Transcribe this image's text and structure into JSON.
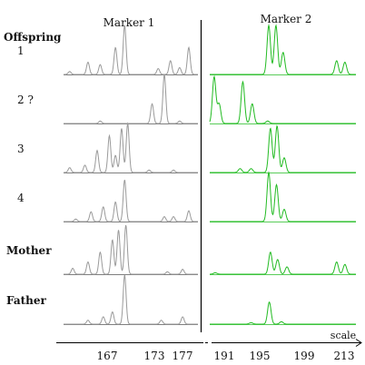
{
  "chart_data": {
    "type": "line",
    "title": "",
    "marker_headers": [
      "Marker 1",
      "Marker 2"
    ],
    "row_header": "Offspring",
    "x_axis": {
      "label": "scale",
      "ticks": [
        "167",
        "173",
        "177",
        "191",
        "195",
        "199",
        "213"
      ]
    },
    "colors": {
      "marker1": "#9a9a9a",
      "marker2": "#22bb22",
      "baseline": "#555555",
      "axis": "#000000"
    },
    "rows": [
      {
        "label": "1",
        "bold": false,
        "marker1": [
          {
            "x": 158,
            "h": 0.06
          },
          {
            "x": 161,
            "h": 0.25
          },
          {
            "x": 163,
            "h": 0.2
          },
          {
            "x": 165.5,
            "h": 0.55
          },
          {
            "x": 167,
            "h": 1.0
          },
          {
            "x": 172.5,
            "h": 0.12
          },
          {
            "x": 174.5,
            "h": 0.28
          },
          {
            "x": 176,
            "h": 0.14
          },
          {
            "x": 177.5,
            "h": 0.55
          }
        ],
        "marker2": [
          {
            "x": 198.2,
            "h": 1.0
          },
          {
            "x": 199.5,
            "h": 1.0
          },
          {
            "x": 200.8,
            "h": 0.45
          },
          {
            "x": 210.5,
            "h": 0.28
          },
          {
            "x": 212,
            "h": 0.25
          }
        ]
      },
      {
        "label": "2 ?",
        "bold": false,
        "marker1": [
          {
            "x": 163,
            "h": 0.05
          },
          {
            "x": 171.5,
            "h": 0.4
          },
          {
            "x": 173.5,
            "h": 1.0
          },
          {
            "x": 176,
            "h": 0.05
          }
        ],
        "marker2": [
          {
            "x": 188.3,
            "h": 0.95
          },
          {
            "x": 189.2,
            "h": 0.4
          },
          {
            "x": 193.5,
            "h": 0.85
          },
          {
            "x": 195.2,
            "h": 0.4
          },
          {
            "x": 198,
            "h": 0.05
          }
        ]
      },
      {
        "label": "3",
        "bold": false,
        "marker1": [
          {
            "x": 158,
            "h": 0.1
          },
          {
            "x": 160.5,
            "h": 0.15
          },
          {
            "x": 162.5,
            "h": 0.45
          },
          {
            "x": 164.5,
            "h": 0.75
          },
          {
            "x": 165.5,
            "h": 0.35
          },
          {
            "x": 166.5,
            "h": 0.9
          },
          {
            "x": 167.5,
            "h": 1.0
          },
          {
            "x": 171,
            "h": 0.05
          },
          {
            "x": 175,
            "h": 0.05
          }
        ],
        "marker2": [
          {
            "x": 193,
            "h": 0.08
          },
          {
            "x": 195,
            "h": 0.08
          },
          {
            "x": 198.5,
            "h": 0.9
          },
          {
            "x": 199.7,
            "h": 0.95
          },
          {
            "x": 201,
            "h": 0.3
          }
        ]
      },
      {
        "label": "4",
        "bold": false,
        "marker1": [
          {
            "x": 159,
            "h": 0.05
          },
          {
            "x": 161.5,
            "h": 0.2
          },
          {
            "x": 163.5,
            "h": 0.3
          },
          {
            "x": 165.5,
            "h": 0.4
          },
          {
            "x": 167,
            "h": 0.85
          },
          {
            "x": 173.5,
            "h": 0.1
          },
          {
            "x": 175,
            "h": 0.1
          },
          {
            "x": 177.5,
            "h": 0.22
          }
        ],
        "marker2": [
          {
            "x": 198.2,
            "h": 1.0
          },
          {
            "x": 199.6,
            "h": 0.75
          },
          {
            "x": 201,
            "h": 0.25
          }
        ]
      },
      {
        "label": "Mother",
        "bold": true,
        "marker1": [
          {
            "x": 158.5,
            "h": 0.12
          },
          {
            "x": 161,
            "h": 0.25
          },
          {
            "x": 163,
            "h": 0.45
          },
          {
            "x": 165,
            "h": 0.7
          },
          {
            "x": 166,
            "h": 0.9
          },
          {
            "x": 167.2,
            "h": 1.0
          },
          {
            "x": 174,
            "h": 0.05
          },
          {
            "x": 176.5,
            "h": 0.1
          }
        ],
        "marker2": [
          {
            "x": 188.5,
            "h": 0.03
          },
          {
            "x": 198.5,
            "h": 0.45
          },
          {
            "x": 199.8,
            "h": 0.3
          },
          {
            "x": 201.5,
            "h": 0.15
          },
          {
            "x": 210.5,
            "h": 0.25
          },
          {
            "x": 212,
            "h": 0.2
          }
        ]
      },
      {
        "label": "Father",
        "bold": true,
        "marker1": [
          {
            "x": 161,
            "h": 0.08
          },
          {
            "x": 163.5,
            "h": 0.15
          },
          {
            "x": 165,
            "h": 0.25
          },
          {
            "x": 167,
            "h": 1.0
          },
          {
            "x": 173,
            "h": 0.08
          },
          {
            "x": 176.5,
            "h": 0.15
          }
        ],
        "marker2": [
          {
            "x": 195,
            "h": 0.03
          },
          {
            "x": 198.3,
            "h": 0.45
          },
          {
            "x": 200.5,
            "h": 0.05
          }
        ]
      }
    ]
  }
}
